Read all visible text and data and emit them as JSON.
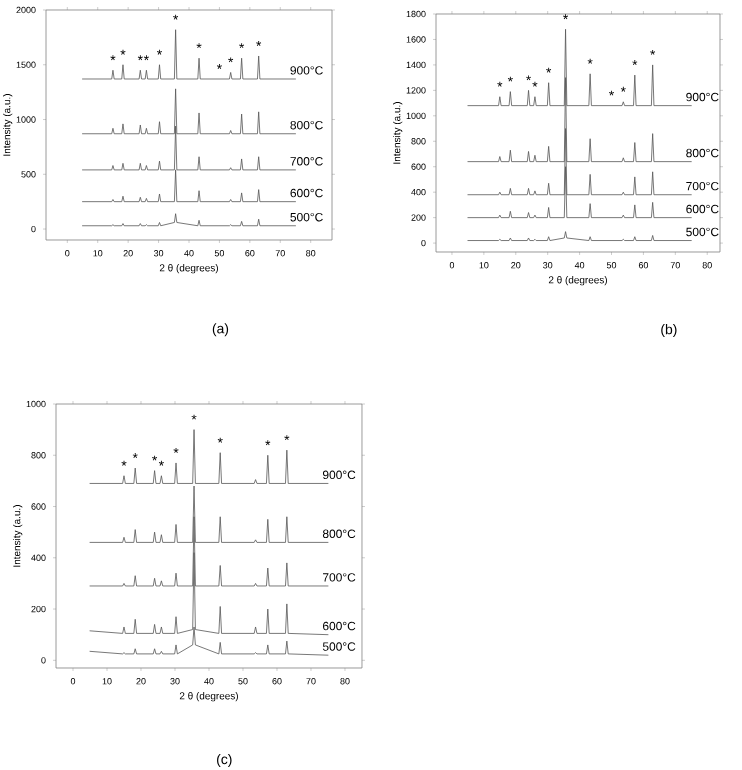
{
  "chart_data": [
    {
      "type": "line",
      "title": "(a)",
      "xlabel": "2 θ (degrees)",
      "ylabel": "Intensity (a.u.)",
      "xlim": [
        -7,
        87
      ],
      "ylim": [
        -100,
        2000
      ],
      "xticks": [
        0,
        10,
        20,
        30,
        40,
        50,
        60,
        70,
        80
      ],
      "yticks": [
        0,
        500,
        1000,
        1500,
        2000
      ],
      "x": [
        5,
        14.6,
        15,
        15.4,
        17.9,
        18.3,
        18.7,
        23.6,
        24,
        24.4,
        25.6,
        26,
        26.4,
        29.9,
        30.3,
        30.7,
        35.2,
        35.6,
        36,
        42.9,
        43.3,
        43.7,
        53.3,
        53.7,
        54.1,
        56.9,
        57.3,
        57.7,
        62.5,
        62.9,
        63.3,
        75
      ],
      "series": [
        {
          "name": "500°C",
          "color": "#555555",
          "values": [
            30,
            30,
            40,
            30,
            30,
            50,
            30,
            30,
            50,
            30,
            30,
            40,
            30,
            30,
            60,
            30,
            60,
            140,
            60,
            30,
            80,
            30,
            30,
            40,
            30,
            30,
            70,
            30,
            30,
            90,
            30,
            30
          ]
        },
        {
          "name": "600°C",
          "color": "#555555",
          "values": [
            250,
            250,
            270,
            250,
            250,
            300,
            250,
            250,
            290,
            250,
            250,
            280,
            250,
            250,
            320,
            250,
            250,
            540,
            250,
            250,
            350,
            250,
            250,
            270,
            250,
            250,
            330,
            250,
            250,
            360,
            250,
            250
          ]
        },
        {
          "name": "700°C",
          "color": "#555555",
          "values": [
            540,
            540,
            580,
            540,
            540,
            600,
            540,
            540,
            600,
            540,
            540,
            580,
            540,
            540,
            620,
            540,
            540,
            940,
            540,
            540,
            660,
            540,
            540,
            560,
            540,
            540,
            640,
            540,
            540,
            660,
            540,
            540
          ]
        },
        {
          "name": "800°C",
          "color": "#555555",
          "values": [
            870,
            870,
            920,
            870,
            870,
            960,
            870,
            870,
            950,
            870,
            870,
            920,
            870,
            870,
            980,
            870,
            870,
            1280,
            870,
            870,
            1060,
            870,
            870,
            900,
            870,
            870,
            1050,
            870,
            870,
            1070,
            870,
            870
          ]
        },
        {
          "name": "900°C",
          "color": "#555555",
          "values": [
            1370,
            1370,
            1450,
            1370,
            1370,
            1500,
            1370,
            1370,
            1450,
            1370,
            1370,
            1450,
            1370,
            1370,
            1500,
            1370,
            1370,
            1820,
            1370,
            1370,
            1560,
            1370,
            1370,
            1430,
            1370,
            1370,
            1560,
            1370,
            1370,
            1580,
            1370,
            1370
          ]
        }
      ],
      "annotations": [
        {
          "text": "*",
          "x": 15,
          "y": 1450
        },
        {
          "text": "*",
          "x": 18.3,
          "y": 1500
        },
        {
          "text": "*",
          "x": 24,
          "y": 1450
        },
        {
          "text": "*",
          "x": 26,
          "y": 1450
        },
        {
          "text": "*",
          "x": 30.3,
          "y": 1500
        },
        {
          "text": "*",
          "x": 35.6,
          "y": 1820
        },
        {
          "text": "*",
          "x": 43.3,
          "y": 1560
        },
        {
          "text": "*",
          "x": 50,
          "y": 1370
        },
        {
          "text": "*",
          "x": 53.7,
          "y": 1430
        },
        {
          "text": "*",
          "x": 57.3,
          "y": 1560
        },
        {
          "text": "*",
          "x": 62.9,
          "y": 1580
        }
      ]
    },
    {
      "type": "line",
      "title": "(b)",
      "xlabel": "2 θ (degrees)",
      "ylabel": "Intensity (a.u.)",
      "xlim": [
        -5,
        84
      ],
      "ylim": [
        -70,
        1800
      ],
      "xticks": [
        0,
        10,
        20,
        30,
        40,
        50,
        60,
        70,
        80
      ],
      "yticks": [
        0,
        200,
        400,
        600,
        800,
        1000,
        1200,
        1400,
        1600,
        1800
      ],
      "x": [
        5,
        14.6,
        15,
        15.4,
        17.9,
        18.3,
        18.7,
        23.6,
        24,
        24.4,
        25.6,
        26,
        26.4,
        29.9,
        30.3,
        30.7,
        35.2,
        35.6,
        36,
        42.9,
        43.3,
        43.7,
        53.3,
        53.7,
        54.1,
        56.9,
        57.3,
        57.7,
        62.5,
        62.9,
        63.3,
        75
      ],
      "series": [
        {
          "name": "500°C",
          "color": "#555555",
          "values": [
            20,
            20,
            30,
            20,
            20,
            40,
            20,
            20,
            40,
            20,
            20,
            30,
            20,
            20,
            50,
            20,
            40,
            90,
            40,
            20,
            50,
            20,
            20,
            30,
            20,
            20,
            50,
            20,
            20,
            60,
            20,
            20
          ]
        },
        {
          "name": "600°C",
          "color": "#555555",
          "values": [
            200,
            200,
            220,
            200,
            200,
            250,
            200,
            200,
            240,
            200,
            200,
            220,
            200,
            200,
            280,
            200,
            200,
            600,
            200,
            200,
            310,
            200,
            200,
            220,
            200,
            200,
            300,
            200,
            200,
            320,
            200,
            200
          ]
        },
        {
          "name": "700°C",
          "color": "#555555",
          "values": [
            380,
            380,
            400,
            380,
            380,
            430,
            380,
            380,
            430,
            380,
            380,
            410,
            380,
            380,
            470,
            380,
            380,
            900,
            380,
            380,
            540,
            380,
            380,
            400,
            380,
            380,
            520,
            380,
            380,
            560,
            380,
            380
          ]
        },
        {
          "name": "800°C",
          "color": "#555555",
          "values": [
            640,
            640,
            680,
            640,
            640,
            730,
            640,
            640,
            720,
            640,
            640,
            690,
            640,
            640,
            760,
            640,
            640,
            1300,
            640,
            640,
            820,
            640,
            640,
            670,
            640,
            640,
            790,
            640,
            640,
            860,
            640,
            640
          ]
        },
        {
          "name": "900°C",
          "color": "#555555",
          "values": [
            1080,
            1080,
            1150,
            1080,
            1080,
            1190,
            1080,
            1080,
            1200,
            1080,
            1080,
            1150,
            1080,
            1080,
            1260,
            1080,
            1080,
            1680,
            1080,
            1080,
            1330,
            1080,
            1080,
            1110,
            1080,
            1080,
            1320,
            1080,
            1080,
            1400,
            1080,
            1080
          ]
        }
      ],
      "annotations": [
        {
          "text": "*",
          "x": 15,
          "y": 1150
        },
        {
          "text": "*",
          "x": 18.3,
          "y": 1190
        },
        {
          "text": "*",
          "x": 24,
          "y": 1200
        },
        {
          "text": "*",
          "x": 26,
          "y": 1150
        },
        {
          "text": "*",
          "x": 30.3,
          "y": 1260
        },
        {
          "text": "*",
          "x": 35.6,
          "y": 1680
        },
        {
          "text": "*",
          "x": 43.3,
          "y": 1330
        },
        {
          "text": "*",
          "x": 50,
          "y": 1080
        },
        {
          "text": "*",
          "x": 53.7,
          "y": 1110
        },
        {
          "text": "*",
          "x": 57.3,
          "y": 1320
        },
        {
          "text": "*",
          "x": 62.9,
          "y": 1400
        }
      ]
    },
    {
      "type": "line",
      "title": "(c)",
      "xlabel": "2 θ (degrees)",
      "ylabel": "Intensity (a.u.)",
      "xlim": [
        -5,
        85
      ],
      "ylim": [
        -30,
        1000
      ],
      "xticks": [
        0,
        10,
        20,
        30,
        40,
        50,
        60,
        70,
        80
      ],
      "yticks": [
        0,
        200,
        400,
        600,
        800,
        1000
      ],
      "x": [
        5,
        14.6,
        15,
        15.4,
        17.9,
        18.3,
        18.7,
        23.6,
        24,
        24.4,
        25.6,
        26,
        26.4,
        29.9,
        30.3,
        30.7,
        35.2,
        35.6,
        36,
        42.9,
        43.3,
        43.7,
        53.3,
        53.7,
        54.1,
        56.9,
        57.3,
        57.7,
        62.5,
        62.9,
        63.3,
        75
      ],
      "series": [
        {
          "name": "500°C",
          "color": "#555555",
          "values": [
            35,
            25,
            30,
            25,
            25,
            45,
            25,
            25,
            45,
            25,
            25,
            35,
            25,
            25,
            60,
            25,
            60,
            130,
            60,
            25,
            70,
            25,
            25,
            30,
            25,
            25,
            60,
            25,
            25,
            75,
            25,
            20
          ]
        },
        {
          "name": "600°C",
          "color": "#555555",
          "values": [
            115,
            105,
            130,
            105,
            105,
            160,
            105,
            105,
            140,
            105,
            105,
            130,
            105,
            105,
            170,
            105,
            120,
            420,
            120,
            105,
            210,
            105,
            105,
            130,
            105,
            105,
            200,
            105,
            105,
            220,
            105,
            100
          ]
        },
        {
          "name": "700°C",
          "color": "#555555",
          "values": [
            290,
            290,
            300,
            290,
            290,
            330,
            290,
            290,
            320,
            290,
            290,
            310,
            290,
            290,
            340,
            290,
            290,
            560,
            290,
            290,
            370,
            290,
            290,
            300,
            290,
            290,
            360,
            290,
            290,
            380,
            290,
            290
          ]
        },
        {
          "name": "800°C",
          "color": "#555555",
          "values": [
            460,
            460,
            480,
            460,
            460,
            510,
            460,
            460,
            500,
            460,
            460,
            490,
            460,
            460,
            530,
            460,
            460,
            680,
            460,
            460,
            560,
            460,
            460,
            470,
            460,
            460,
            550,
            460,
            460,
            560,
            460,
            460
          ]
        },
        {
          "name": "900°C",
          "color": "#555555",
          "values": [
            690,
            690,
            720,
            690,
            690,
            750,
            690,
            690,
            740,
            690,
            690,
            720,
            690,
            690,
            770,
            690,
            690,
            900,
            690,
            690,
            810,
            690,
            690,
            705,
            690,
            690,
            800,
            690,
            690,
            820,
            690,
            690
          ]
        }
      ],
      "annotations": [
        {
          "text": "*",
          "x": 15,
          "y": 720
        },
        {
          "text": "*",
          "x": 18.3,
          "y": 750
        },
        {
          "text": "*",
          "x": 24,
          "y": 740
        },
        {
          "text": "*",
          "x": 26,
          "y": 720
        },
        {
          "text": "*",
          "x": 30.3,
          "y": 770
        },
        {
          "text": "*",
          "x": 35.6,
          "y": 900
        },
        {
          "text": "*",
          "x": 43.3,
          "y": 810
        },
        {
          "text": "*",
          "x": 57.3,
          "y": 800
        },
        {
          "text": "*",
          "x": 62.9,
          "y": 820
        }
      ]
    }
  ]
}
